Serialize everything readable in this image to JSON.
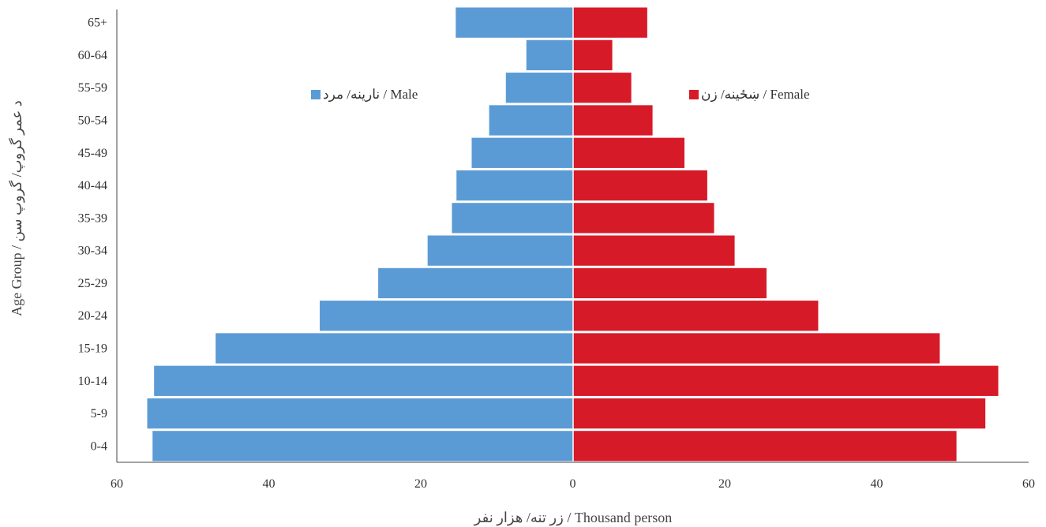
{
  "chart_data": {
    "type": "bar",
    "orientation": "horizontal-population-pyramid",
    "categories": [
      "0-4",
      "5-9",
      "10-14",
      "15-19",
      "20-24",
      "25-29",
      "30-34",
      "35-39",
      "40-44",
      "45-49",
      "50-54",
      "55-59",
      "60-64",
      "65+"
    ],
    "series": [
      {
        "name": "نارینه/ مرد / Male",
        "color": "#5b9bd5",
        "values": [
          55.3,
          56.0,
          55.1,
          47.0,
          33.3,
          25.6,
          19.1,
          15.9,
          15.3,
          13.3,
          11.0,
          8.8,
          6.1,
          15.4
        ]
      },
      {
        "name": "ښځینه/ زن / Female",
        "color": "#d71a28",
        "values": [
          50.4,
          54.2,
          55.9,
          48.2,
          32.2,
          25.4,
          21.2,
          18.5,
          17.6,
          14.6,
          10.4,
          7.6,
          5.1,
          9.7
        ]
      }
    ],
    "xlabel": "زر تنه/ هزار نفر / Thousand person",
    "ylabel": "Age Group / د عمر گروپ/ گروپ سن",
    "xticks": [
      "60",
      "40",
      "20",
      "0",
      "20",
      "40",
      "60"
    ],
    "xlim": [
      -60,
      60
    ],
    "grid": false,
    "legend": "top-inside"
  }
}
